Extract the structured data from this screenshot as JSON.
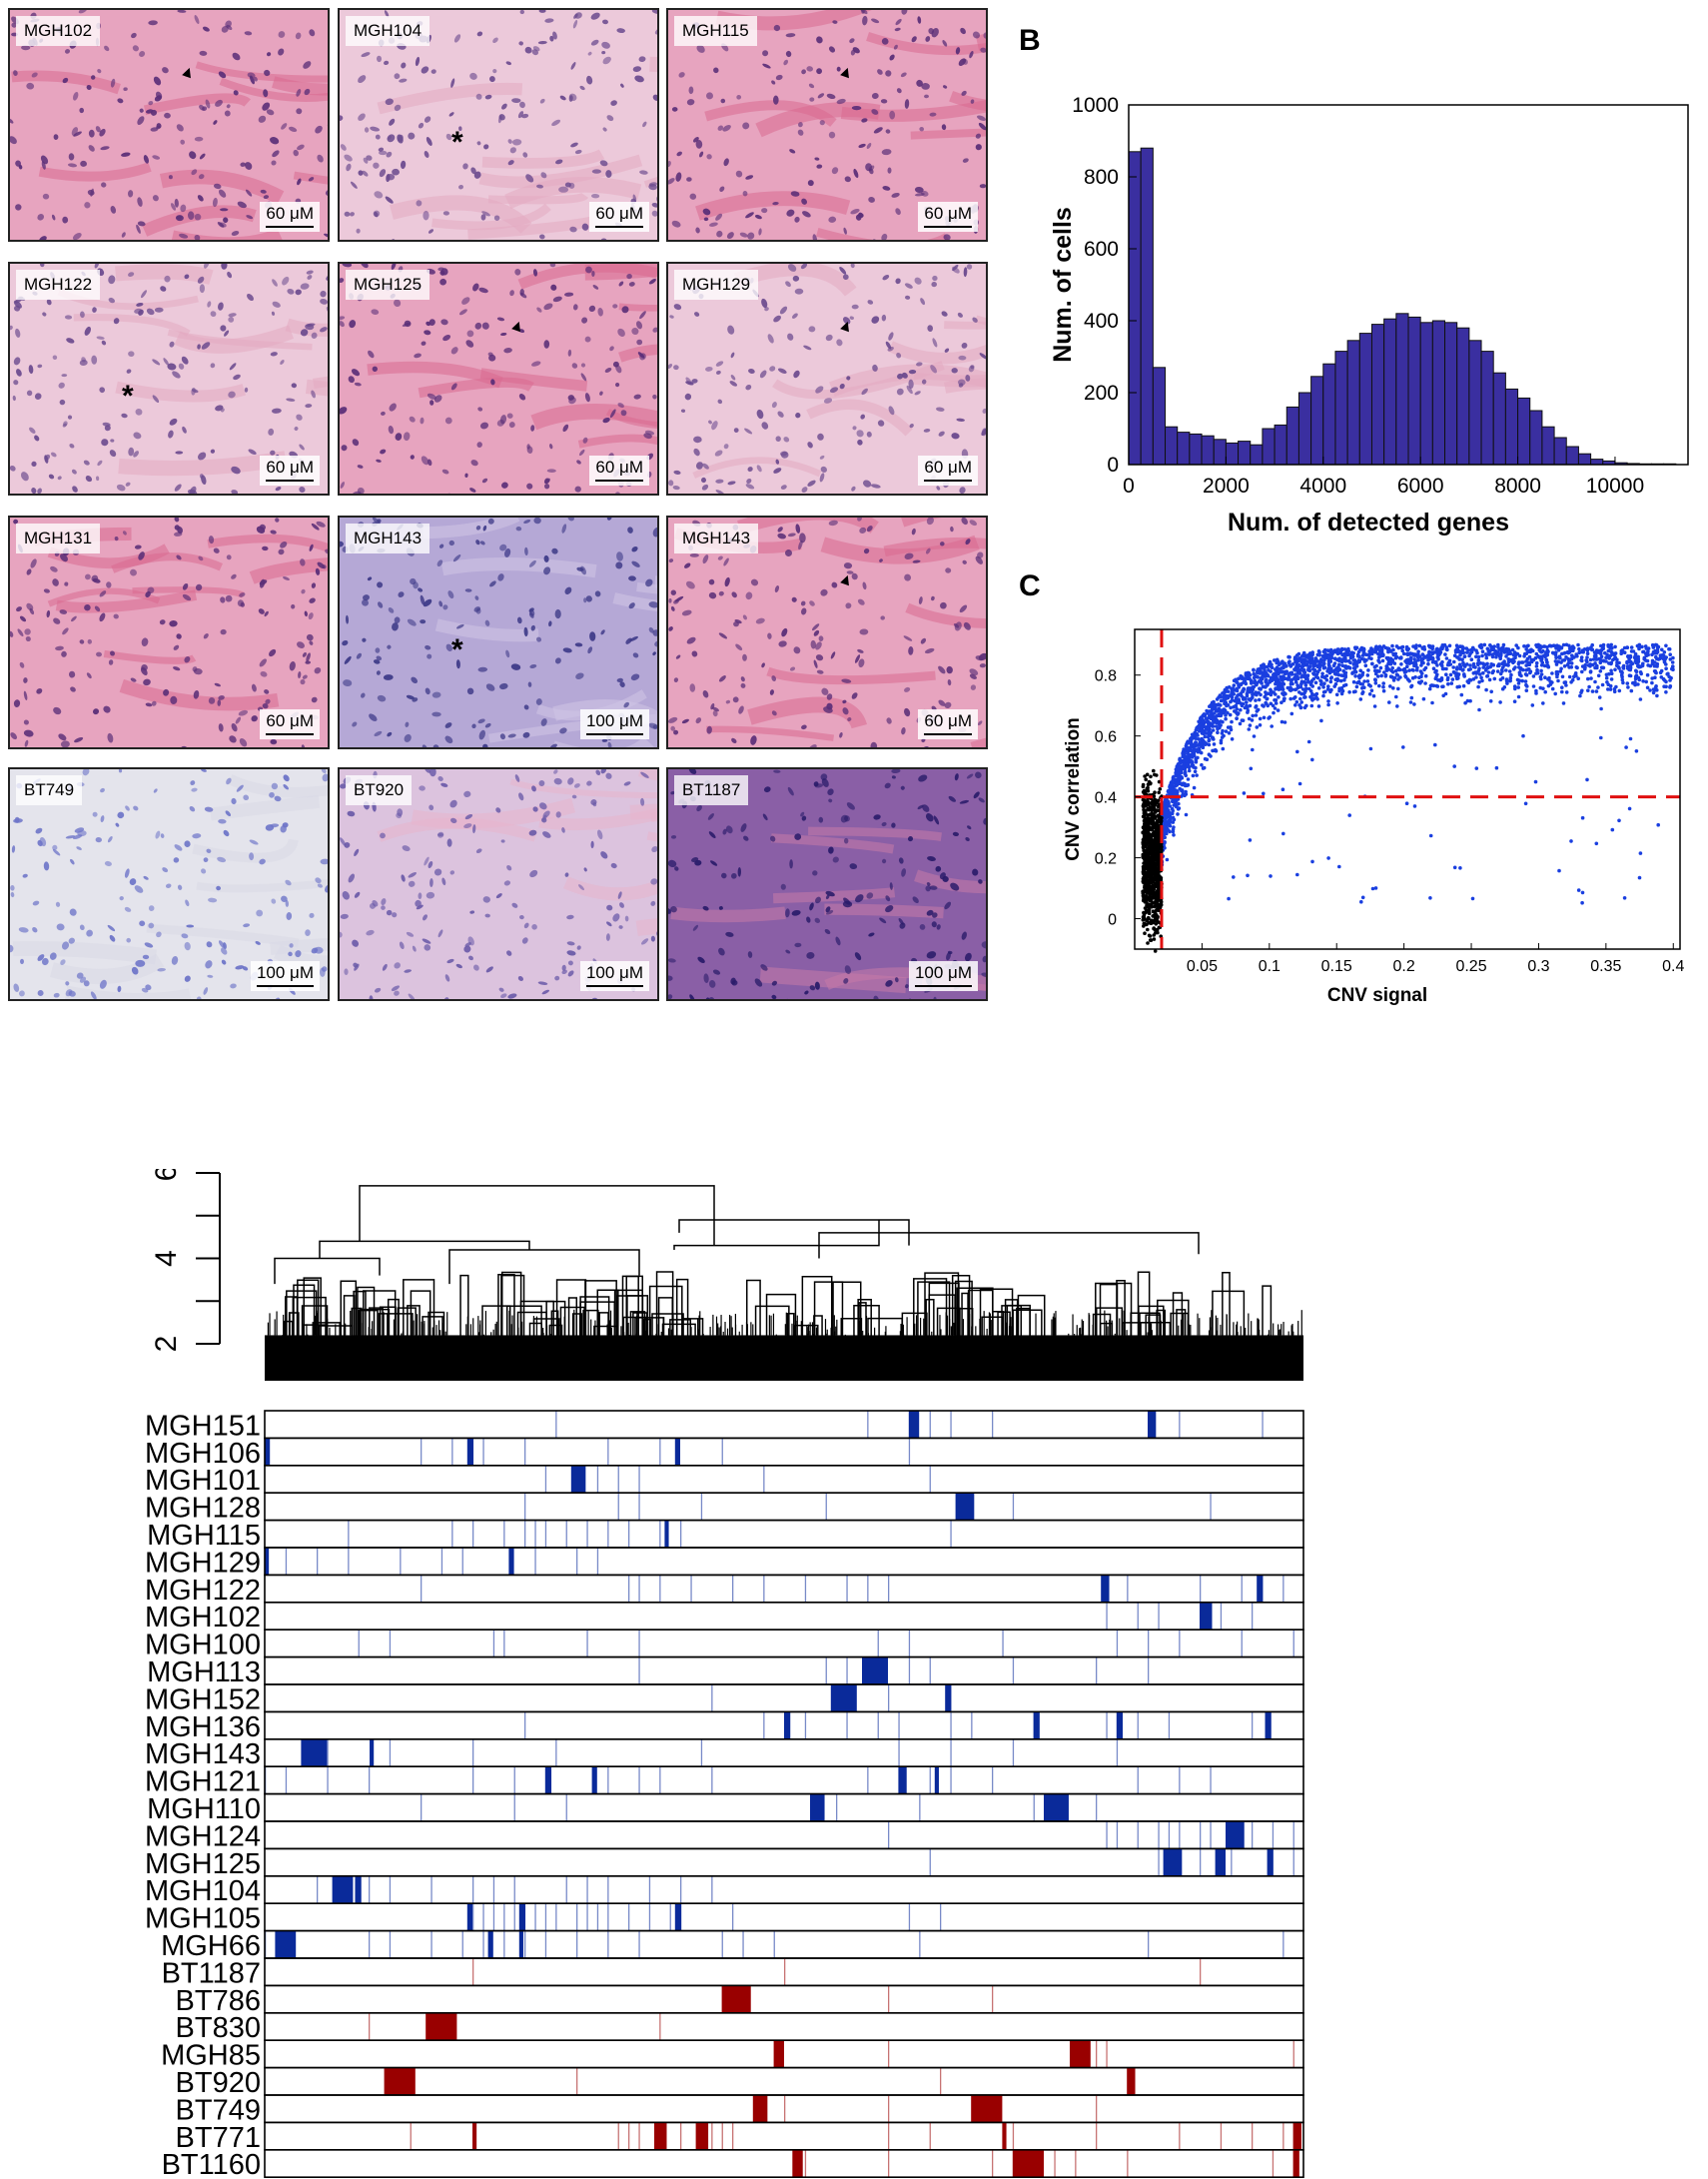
{
  "tiles": [
    {
      "label": "MGH102",
      "scale": "60 μM",
      "tone": "pink",
      "mark": "arrow"
    },
    {
      "label": "MGH104",
      "scale": "60 μM",
      "tone": "light",
      "mark": "star"
    },
    {
      "label": "MGH115",
      "scale": "60 μM",
      "tone": "pink",
      "mark": "arrow"
    },
    {
      "label": "MGH122",
      "scale": "60 μM",
      "tone": "light",
      "mark": "star"
    },
    {
      "label": "MGH125",
      "scale": "60 μM",
      "tone": "pink",
      "mark": "arrow"
    },
    {
      "label": "MGH129",
      "scale": "60 μM",
      "tone": "light",
      "mark": "arrow"
    },
    {
      "label": "MGH131",
      "scale": "60 μM",
      "tone": "pink",
      "mark": ""
    },
    {
      "label": "MGH143",
      "scale": "100 μM",
      "tone": "violet",
      "mark": "star"
    },
    {
      "label": "MGH143",
      "scale": "60 μM",
      "tone": "pink",
      "mark": "arrow"
    },
    {
      "label": "BT749",
      "scale": "100 μM",
      "tone": "pale",
      "mark": ""
    },
    {
      "label": "BT920",
      "scale": "100 μM",
      "tone": "lilac",
      "mark": ""
    },
    {
      "label": "BT1187",
      "scale": "100 μM",
      "tone": "dark",
      "mark": ""
    }
  ],
  "panel_b": {
    "letter": "B"
  },
  "panel_c": {
    "letter": "C"
  },
  "chart_data": [
    {
      "type": "bar",
      "xlabel": "Num. of detected genes",
      "ylabel": "Num. of cells",
      "xlim": [
        0,
        11500
      ],
      "ylim": [
        0,
        1000
      ],
      "xticks": [
        0,
        2000,
        4000,
        6000,
        8000,
        10000
      ],
      "yticks": [
        0,
        200,
        400,
        600,
        800,
        1000
      ],
      "bin_width": 250,
      "bin_starts": [
        0,
        250,
        500,
        750,
        1000,
        1250,
        1500,
        1750,
        2000,
        2250,
        2500,
        2750,
        3000,
        3250,
        3500,
        3750,
        4000,
        4250,
        4500,
        4750,
        5000,
        5250,
        5500,
        5750,
        6000,
        6250,
        6500,
        6750,
        7000,
        7250,
        7500,
        7750,
        8000,
        8250,
        8500,
        8750,
        9000,
        9250,
        9500,
        9750,
        10000,
        10250,
        10500,
        10750,
        11000
      ],
      "values": [
        870,
        880,
        270,
        105,
        90,
        85,
        80,
        70,
        60,
        65,
        55,
        100,
        110,
        160,
        200,
        245,
        280,
        315,
        345,
        365,
        390,
        405,
        420,
        410,
        395,
        400,
        395,
        380,
        345,
        315,
        255,
        210,
        185,
        150,
        105,
        75,
        50,
        30,
        15,
        10,
        5,
        3,
        2,
        2,
        2
      ],
      "color": "#3a2fa0"
    },
    {
      "type": "scatter",
      "xlabel": "CNV signal",
      "ylabel": "CNV correlation",
      "xlim": [
        0,
        0.405
      ],
      "ylim": [
        -0.1,
        0.95
      ],
      "xticks": [
        0.05,
        0.1,
        0.15,
        0.2,
        0.25,
        0.3,
        0.35,
        0.4
      ],
      "yticks": [
        0,
        0.2,
        0.4,
        0.6,
        0.8
      ],
      "thresholds": {
        "x": 0.02,
        "y": 0.4
      },
      "series": [
        {
          "color": "#1a3fe0",
          "cluster": {
            "x_range": [
              0.02,
              0.4
            ],
            "y_center": 0.8,
            "density": "high"
          }
        },
        {
          "color": "#000000",
          "cluster": {
            "x_range": [
              0.005,
              0.022
            ],
            "y_range": [
              -0.05,
              0.45
            ],
            "density": "high"
          }
        }
      ]
    },
    {
      "type": "heatmap",
      "yticks": [
        2,
        4,
        6
      ],
      "rows": [
        {
          "name": "MGH151",
          "color": "#0a2a9a",
          "blocks": [
            [
              0.62,
              0.01
            ],
            [
              0.85,
              0.008
            ]
          ],
          "lines": [
            0.28,
            0.58,
            0.64,
            0.66,
            0.7,
            0.88,
            0.96
          ]
        },
        {
          "name": "MGH106",
          "color": "#0a2a9a",
          "blocks": [
            [
              0.0,
              0.005
            ],
            [
              0.195,
              0.006
            ],
            [
              0.395,
              0.005
            ]
          ],
          "lines": [
            0.15,
            0.18,
            0.21,
            0.25,
            0.33,
            0.38,
            0.44,
            0.62
          ]
        },
        {
          "name": "MGH101",
          "color": "#0a2a9a",
          "blocks": [
            [
              0.295,
              0.014
            ]
          ],
          "lines": [
            0.27,
            0.32,
            0.34,
            0.36,
            0.48,
            0.64
          ]
        },
        {
          "name": "MGH128",
          "color": "#0a2a9a",
          "blocks": [
            [
              0.665,
              0.018
            ]
          ],
          "lines": [
            0.25,
            0.34,
            0.36,
            0.42,
            0.54,
            0.72,
            0.91
          ]
        },
        {
          "name": "MGH115",
          "color": "#0a2a9a",
          "blocks": [
            [
              0.385,
              0.004
            ]
          ],
          "lines": [
            0.08,
            0.18,
            0.2,
            0.23,
            0.25,
            0.26,
            0.27,
            0.29,
            0.31,
            0.33,
            0.35,
            0.38,
            0.4,
            0.66
          ]
        },
        {
          "name": "MGH129",
          "color": "#0a2a9a",
          "blocks": [
            [
              0.0,
              0.004
            ],
            [
              0.235,
              0.005
            ]
          ],
          "lines": [
            0.02,
            0.05,
            0.08,
            0.13,
            0.17,
            0.19,
            0.26,
            0.3,
            0.32
          ]
        },
        {
          "name": "MGH122",
          "color": "#0a2a9a",
          "blocks": [
            [
              0.805,
              0.008
            ],
            [
              0.955,
              0.006
            ]
          ],
          "lines": [
            0.15,
            0.35,
            0.36,
            0.38,
            0.41,
            0.45,
            0.48,
            0.52,
            0.56,
            0.58,
            0.6,
            0.83,
            0.9,
            0.94,
            0.98
          ]
        },
        {
          "name": "MGH102",
          "color": "#0a2a9a",
          "blocks": [
            [
              0.9,
              0.012
            ]
          ],
          "lines": [
            0.81,
            0.84,
            0.86,
            0.92,
            0.95
          ]
        },
        {
          "name": "MGH100",
          "color": "#0a2a9a",
          "blocks": [],
          "lines": [
            0.09,
            0.12,
            0.22,
            0.23,
            0.31,
            0.36,
            0.59,
            0.62,
            0.71,
            0.82,
            0.85,
            0.88,
            0.94,
            0.99
          ]
        },
        {
          "name": "MGH113",
          "color": "#0a2a9a",
          "blocks": [
            [
              0.575,
              0.025
            ]
          ],
          "lines": [
            0.36,
            0.54,
            0.56,
            0.62,
            0.64,
            0.72,
            0.8,
            0.85
          ]
        },
        {
          "name": "MGH152",
          "color": "#0a2a9a",
          "blocks": [
            [
              0.545,
              0.025
            ],
            [
              0.655,
              0.006
            ]
          ],
          "lines": [
            0.43,
            0.6
          ]
        },
        {
          "name": "MGH136",
          "color": "#0a2a9a",
          "blocks": [
            [
              0.5,
              0.006
            ],
            [
              0.74,
              0.006
            ],
            [
              0.82,
              0.006
            ],
            [
              0.963,
              0.006
            ]
          ],
          "lines": [
            0.25,
            0.48,
            0.52,
            0.56,
            0.59,
            0.61,
            0.66,
            0.68,
            0.81,
            0.84,
            0.87,
            0.95
          ]
        },
        {
          "name": "MGH143",
          "color": "#0a2a9a",
          "blocks": [
            [
              0.035,
              0.025
            ],
            [
              0.101,
              0.004
            ]
          ],
          "lines": [
            0.06,
            0.12,
            0.2,
            0.28,
            0.42,
            0.61,
            0.66,
            0.72,
            0.82
          ]
        },
        {
          "name": "MGH121",
          "color": "#0a2a9a",
          "blocks": [
            [
              0.27,
              0.006
            ],
            [
              0.315,
              0.005
            ],
            [
              0.61,
              0.008
            ],
            [
              0.645,
              0.004
            ]
          ],
          "lines": [
            0.0,
            0.02,
            0.06,
            0.1,
            0.2,
            0.24,
            0.33,
            0.36,
            0.38,
            0.43,
            0.58,
            0.64,
            0.66,
            0.7,
            0.84,
            0.88,
            0.91
          ]
        },
        {
          "name": "MGH110",
          "color": "#0a2a9a",
          "blocks": [
            [
              0.525,
              0.014
            ],
            [
              0.75,
              0.024
            ]
          ],
          "lines": [
            0.15,
            0.24,
            0.29,
            0.55,
            0.63,
            0.74,
            0.8
          ]
        },
        {
          "name": "MGH124",
          "color": "#0a2a9a",
          "blocks": [
            [
              0.925,
              0.018
            ]
          ],
          "lines": [
            0.6,
            0.81,
            0.82,
            0.84,
            0.86,
            0.87,
            0.88,
            0.9,
            0.91,
            0.95,
            0.97,
            0.99
          ]
        },
        {
          "name": "MGH125",
          "color": "#0a2a9a",
          "blocks": [
            [
              0.865,
              0.018
            ],
            [
              0.915,
              0.01
            ],
            [
              0.965,
              0.006
            ]
          ],
          "lines": [
            0.64,
            0.86,
            0.87,
            0.9,
            0.93,
            0.99
          ]
        },
        {
          "name": "MGH104",
          "color": "#0a2a9a",
          "blocks": [
            [
              0.065,
              0.02
            ],
            [
              0.087,
              0.006
            ]
          ],
          "lines": [
            0.05,
            0.08,
            0.1,
            0.12,
            0.16,
            0.2,
            0.22,
            0.24,
            0.29,
            0.31,
            0.33,
            0.37,
            0.4,
            0.43
          ]
        },
        {
          "name": "MGH105",
          "color": "#0a2a9a",
          "blocks": [
            [
              0.195,
              0.005
            ],
            [
              0.245,
              0.006
            ],
            [
              0.395,
              0.006
            ]
          ],
          "lines": [
            0.2,
            0.21,
            0.22,
            0.23,
            0.24,
            0.26,
            0.27,
            0.28,
            0.3,
            0.31,
            0.32,
            0.33,
            0.35,
            0.37,
            0.39,
            0.4,
            0.45,
            0.62,
            0.65
          ]
        },
        {
          "name": "MGH66",
          "color": "#0a2a9a",
          "blocks": [
            [
              0.01,
              0.02
            ],
            [
              0.215,
              0.005
            ],
            [
              0.245,
              0.004
            ]
          ],
          "lines": [
            0.0,
            0.1,
            0.12,
            0.16,
            0.19,
            0.21,
            0.23,
            0.25,
            0.27,
            0.3,
            0.33,
            0.36,
            0.44,
            0.46,
            0.49,
            0.63,
            0.85,
            0.98
          ]
        },
        {
          "name": "BT1187",
          "color": "#990000",
          "blocks": [],
          "lines": [
            0.2,
            0.5,
            0.9
          ]
        },
        {
          "name": "BT786",
          "color": "#990000",
          "blocks": [
            [
              0.44,
              0.028
            ]
          ],
          "lines": [
            0.6,
            0.7
          ]
        },
        {
          "name": "BT830",
          "color": "#990000",
          "blocks": [
            [
              0.155,
              0.03
            ]
          ],
          "lines": [
            0.1,
            0.38
          ]
        },
        {
          "name": "MGH85",
          "color": "#990000",
          "blocks": [
            [
              0.49,
              0.01
            ],
            [
              0.775,
              0.02
            ]
          ],
          "lines": [
            0.6,
            0.79,
            0.8,
            0.81,
            0.99
          ]
        },
        {
          "name": "BT920",
          "color": "#990000",
          "blocks": [
            [
              0.115,
              0.03
            ],
            [
              0.83,
              0.008
            ]
          ],
          "lines": [
            0.3,
            0.65
          ]
        },
        {
          "name": "BT749",
          "color": "#990000",
          "blocks": [
            [
              0.47,
              0.014
            ],
            [
              0.68,
              0.03
            ]
          ],
          "lines": [
            0.5,
            0.6,
            0.8
          ]
        },
        {
          "name": "BT771",
          "color": "#990000",
          "blocks": [
            [
              0.2,
              0.004
            ],
            [
              0.375,
              0.012
            ],
            [
              0.415,
              0.012
            ],
            [
              0.71,
              0.004
            ],
            [
              0.99,
              0.008
            ]
          ],
          "lines": [
            0.14,
            0.34,
            0.35,
            0.36,
            0.38,
            0.4,
            0.42,
            0.43,
            0.44,
            0.45,
            0.6,
            0.64,
            0.72,
            0.8,
            0.88,
            0.92,
            0.95,
            0.98
          ]
        },
        {
          "name": "BT1160",
          "color": "#990000",
          "blocks": [
            [
              0.508,
              0.01
            ],
            [
              0.72,
              0.03
            ],
            [
              0.99,
              0.006
            ]
          ],
          "lines": [
            0.52,
            0.6,
            0.7,
            0.76,
            0.78,
            0.83,
            0.97
          ]
        }
      ]
    }
  ]
}
